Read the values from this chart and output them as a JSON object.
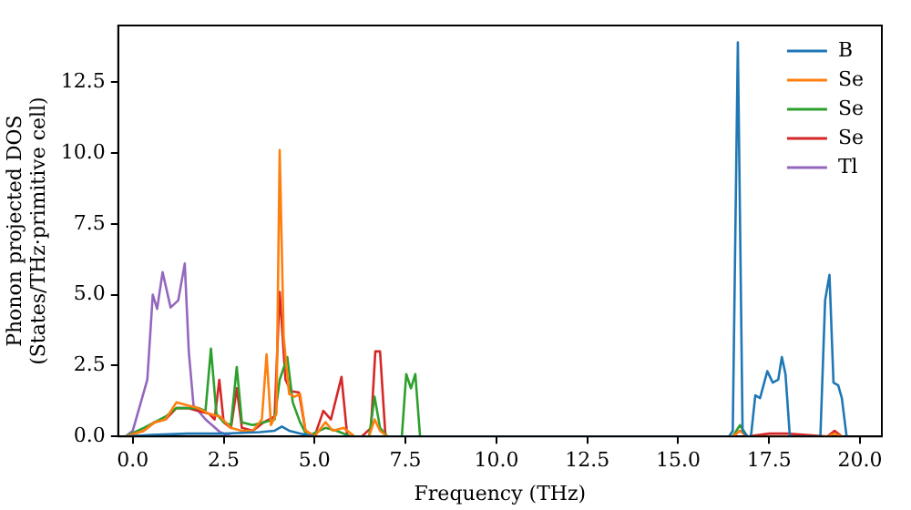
{
  "chart_data": {
    "type": "line",
    "xlabel": "Frequency (THz)",
    "ylabel": "Phonon projected DOS\n(States/THz·primitive cell)",
    "xlim": [
      -0.4,
      20.6
    ],
    "ylim": [
      0,
      14.5
    ],
    "xticks": [
      {
        "value": 0,
        "label": "0.0"
      },
      {
        "value": 2.5,
        "label": "2.5"
      },
      {
        "value": 5,
        "label": "5.0"
      },
      {
        "value": 7.5,
        "label": "7.5"
      },
      {
        "value": 10,
        "label": "10.0"
      },
      {
        "value": 12.5,
        "label": "12.5"
      },
      {
        "value": 15,
        "label": "15.0"
      },
      {
        "value": 17.5,
        "label": "17.5"
      },
      {
        "value": 20,
        "label": "20.0"
      }
    ],
    "yticks": [
      {
        "value": 0,
        "label": "0.0"
      },
      {
        "value": 2.5,
        "label": "2.5"
      },
      {
        "value": 5,
        "label": "5.0"
      },
      {
        "value": 7.5,
        "label": "7.5"
      },
      {
        "value": 10,
        "label": "10.0"
      },
      {
        "value": 12.5,
        "label": "12.5"
      }
    ],
    "legend": "top right",
    "grid": false,
    "marker": "none",
    "line_style": "solid",
    "series": [
      {
        "name": "B",
        "color": "#1f77b4",
        "x": [
          -0.2,
          0.5,
          1.5,
          2.5,
          3.5,
          3.9,
          4.1,
          4.3,
          4.6,
          5,
          16.4,
          16.5,
          16.64,
          16.77,
          16.9,
          17.0,
          17.12,
          17.25,
          17.45,
          17.6,
          17.75,
          17.85,
          17.95,
          18.07,
          18.6,
          18.91,
          19.04,
          19.16,
          19.27,
          19.4,
          19.5,
          19.63
        ],
        "values": [
          0,
          0.05,
          0.1,
          0.1,
          0.15,
          0.2,
          0.35,
          0.2,
          0.1,
          0,
          0,
          0.2,
          13.9,
          0.2,
          0,
          0,
          1.45,
          1.35,
          2.3,
          1.9,
          2.0,
          2.8,
          2.2,
          0,
          0,
          0,
          4.8,
          5.7,
          1.9,
          1.8,
          1.35,
          0
        ]
      },
      {
        "name": "Se",
        "color": "#ff7f0e",
        "x": [
          -0.2,
          0.3,
          0.6,
          0.9,
          1.2,
          1.5,
          1.8,
          2.1,
          2.4,
          2.7,
          3.0,
          3.3,
          3.55,
          3.68,
          3.8,
          3.95,
          4.04,
          4.15,
          4.3,
          4.45,
          4.6,
          4.75,
          5.0,
          5.3,
          5.5,
          5.8,
          6.1,
          6.5,
          6.65,
          6.8,
          7.0,
          8,
          16.5,
          16.7,
          16.9,
          19.1,
          19.3,
          19.5
        ],
        "values": [
          0,
          0.2,
          0.5,
          0.6,
          1.2,
          1.1,
          1.0,
          0.8,
          0.7,
          0.3,
          0.2,
          0.2,
          0.6,
          2.9,
          0.4,
          0.8,
          10.1,
          3.5,
          1.5,
          1.4,
          1.5,
          0.2,
          0,
          0.5,
          0.2,
          0.3,
          0,
          0,
          0.6,
          0.2,
          0,
          0,
          0,
          0.2,
          0,
          0,
          0.1,
          0
        ]
      },
      {
        "name": "Se",
        "color": "#2ca02c",
        "x": [
          -0.2,
          0.3,
          0.6,
          0.9,
          1.2,
          1.5,
          1.8,
          2.0,
          2.15,
          2.3,
          2.5,
          2.7,
          2.86,
          3.0,
          3.3,
          3.6,
          3.9,
          4.04,
          4.25,
          4.4,
          4.6,
          4.8,
          5.3,
          5.6,
          6.0,
          6.5,
          6.65,
          6.8,
          7.0,
          7.4,
          7.52,
          7.65,
          7.77,
          7.9,
          8.5,
          16.5,
          16.7,
          16.9
        ],
        "values": [
          0,
          0.3,
          0.5,
          0.7,
          1.0,
          1.0,
          1.0,
          0.9,
          3.1,
          0.8,
          0.5,
          0.4,
          2.45,
          0.5,
          0.4,
          0.5,
          0.6,
          2.0,
          2.8,
          1.2,
          0.5,
          0,
          0.3,
          0.2,
          0,
          0,
          1.4,
          0.3,
          0,
          0,
          2.2,
          1.7,
          2.2,
          0,
          0,
          0,
          0.4,
          0
        ]
      },
      {
        "name": "Se",
        "color": "#d62728",
        "x": [
          -0.2,
          0.3,
          0.6,
          0.9,
          1.2,
          1.5,
          1.8,
          2.1,
          2.25,
          2.38,
          2.5,
          2.7,
          2.86,
          3.0,
          3.3,
          3.6,
          3.9,
          4.04,
          4.2,
          4.35,
          4.57,
          4.75,
          5.0,
          5.24,
          5.45,
          5.74,
          5.9,
          6.3,
          6.55,
          6.67,
          6.8,
          6.95,
          7.2,
          16.5,
          16.7,
          16.9,
          17.5,
          18.0,
          19.1,
          19.3,
          19.5
        ],
        "values": [
          0,
          0.2,
          0.5,
          0.6,
          1.0,
          1.0,
          0.9,
          0.8,
          0.6,
          2.0,
          0.5,
          0.3,
          1.7,
          0.3,
          0.2,
          0.5,
          0.7,
          5.1,
          2.0,
          1.6,
          1.55,
          0.2,
          0,
          0.9,
          0.6,
          2.1,
          0,
          0,
          0.3,
          3.0,
          3.0,
          0,
          0,
          0,
          0.2,
          0,
          0.1,
          0.1,
          0,
          0.2,
          0
        ]
      },
      {
        "name": "Tl",
        "color": "#9467bd",
        "x": [
          -0.2,
          0.0,
          0.2,
          0.4,
          0.55,
          0.67,
          0.82,
          1.04,
          1.25,
          1.43,
          1.54,
          1.67,
          2.0,
          2.4,
          2.7
        ],
        "values": [
          0,
          0.2,
          1.1,
          2.0,
          5.0,
          4.5,
          5.8,
          4.55,
          4.8,
          6.1,
          3.0,
          1.1,
          0.6,
          0.15,
          0
        ]
      }
    ]
  }
}
